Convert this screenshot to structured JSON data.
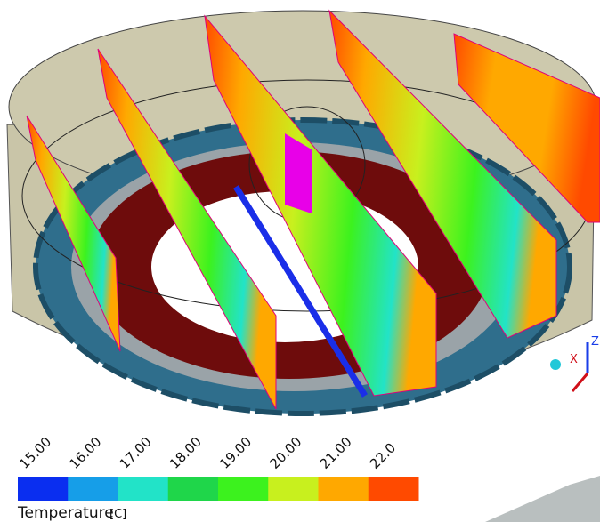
{
  "legend": {
    "title": "Temperature",
    "unit": "[C]",
    "ticks": [
      "15.00",
      "16.00",
      "17.00",
      "18.00",
      "19.00",
      "20.00",
      "21.00",
      "22.0"
    ],
    "colors": [
      "#0a2ef0",
      "#169ee8",
      "#22e3c8",
      "#1fd64a",
      "#3cf21e",
      "#c8f01e",
      "#ffa800",
      "#ff4a00"
    ]
  },
  "triad": {
    "x": "X",
    "z": "Z"
  }
}
